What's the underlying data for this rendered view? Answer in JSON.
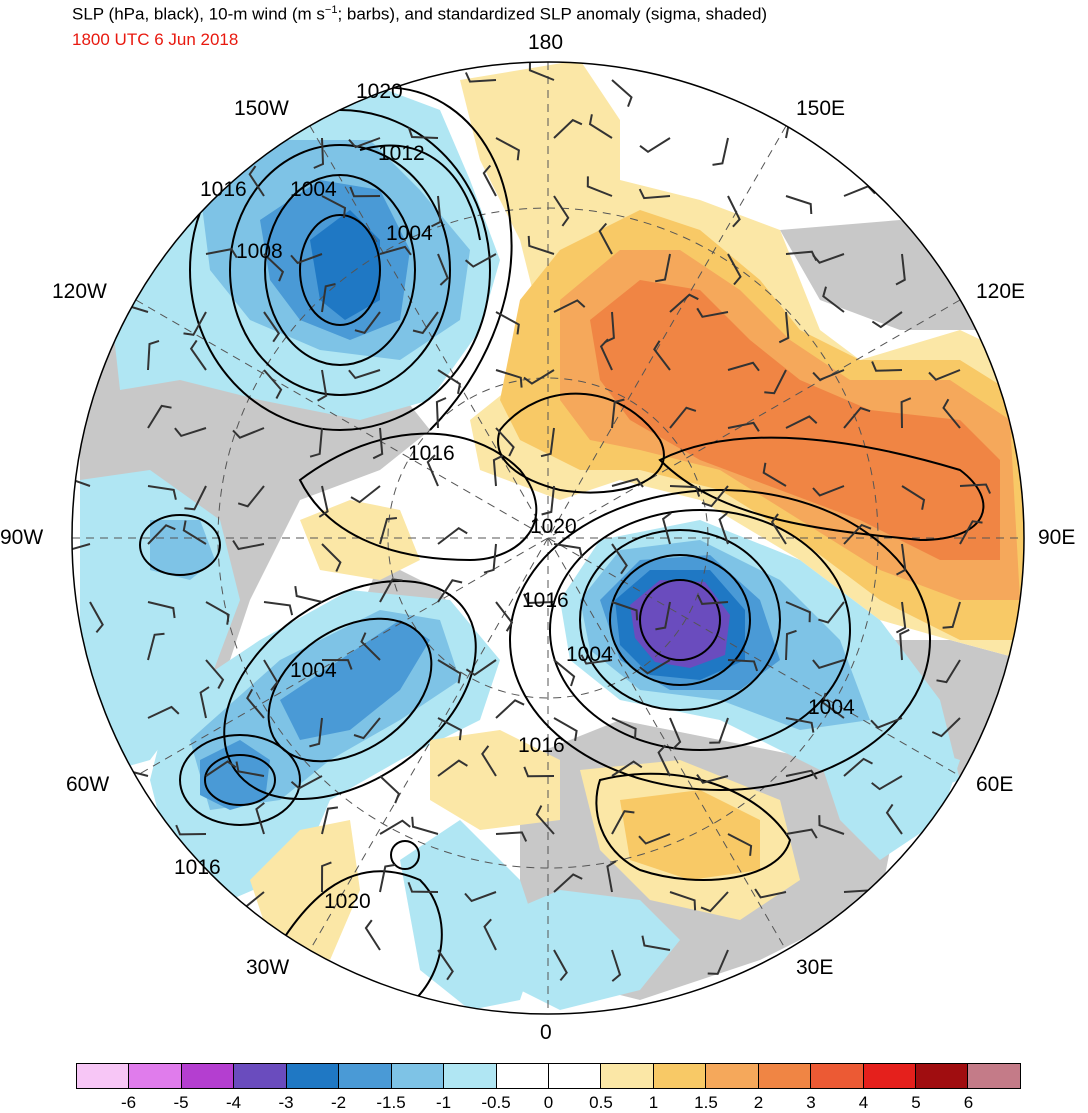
{
  "header": {
    "title_prefix": "SLP (hPa, black), 10-m wind (m s",
    "title_sup": "−1",
    "title_suffix": "; barbs), and standardized SLP anomaly (sigma, shaded)",
    "valid_time": "1800 UTC 6 Jun 2018",
    "valid_time_color": "#e8190f"
  },
  "longitude_labels": {
    "top": "180",
    "bottom": "0",
    "left": "90W",
    "right": "90E",
    "upper_left_150": "150W",
    "upper_left_120": "120W",
    "upper_right_150": "150E",
    "upper_right_120": "120E",
    "lower_left_60": "60W",
    "lower_left_30": "30W",
    "lower_right_60": "60E",
    "lower_right_30": "30E"
  },
  "contour_labels": [
    "1020",
    "1012",
    "1016",
    "1004",
    "1004",
    "1008",
    "1016",
    "1020",
    "1016",
    "1004",
    "1004",
    "1004",
    "1016",
    "1016",
    "1020"
  ],
  "colorbar": {
    "colors": [
      "#f7c6f6",
      "#e07cec",
      "#b43ed0",
      "#6a4cbe",
      "#1f78c4",
      "#4a9ad6",
      "#7ec3e6",
      "#b0e6f3",
      "#ffffff",
      "#ffffff",
      "#fbe7a6",
      "#f8c966",
      "#f5a85b",
      "#f08544",
      "#ec5a34",
      "#e5201c",
      "#a00d10",
      "#c47b88"
    ],
    "labels": [
      "-6",
      "-5",
      "-4",
      "-3",
      "-2",
      "-1.5",
      "-1",
      "-0.5",
      "0",
      "0.5",
      "1",
      "1.5",
      "2",
      "3",
      "4",
      "5",
      "6"
    ]
  },
  "colors": {
    "land_gray": "#c8c8c8",
    "neg_light": "#b0e6f3",
    "neg_med": "#7ec3e6",
    "neg_strong": "#4a9ad6",
    "neg_deep": "#1f78c4",
    "neg_extreme": "#6a4cbe",
    "pos_light": "#fbe7a6",
    "pos_med": "#f8c966",
    "pos_strong": "#f5a85b",
    "pos_deep": "#f08544"
  }
}
